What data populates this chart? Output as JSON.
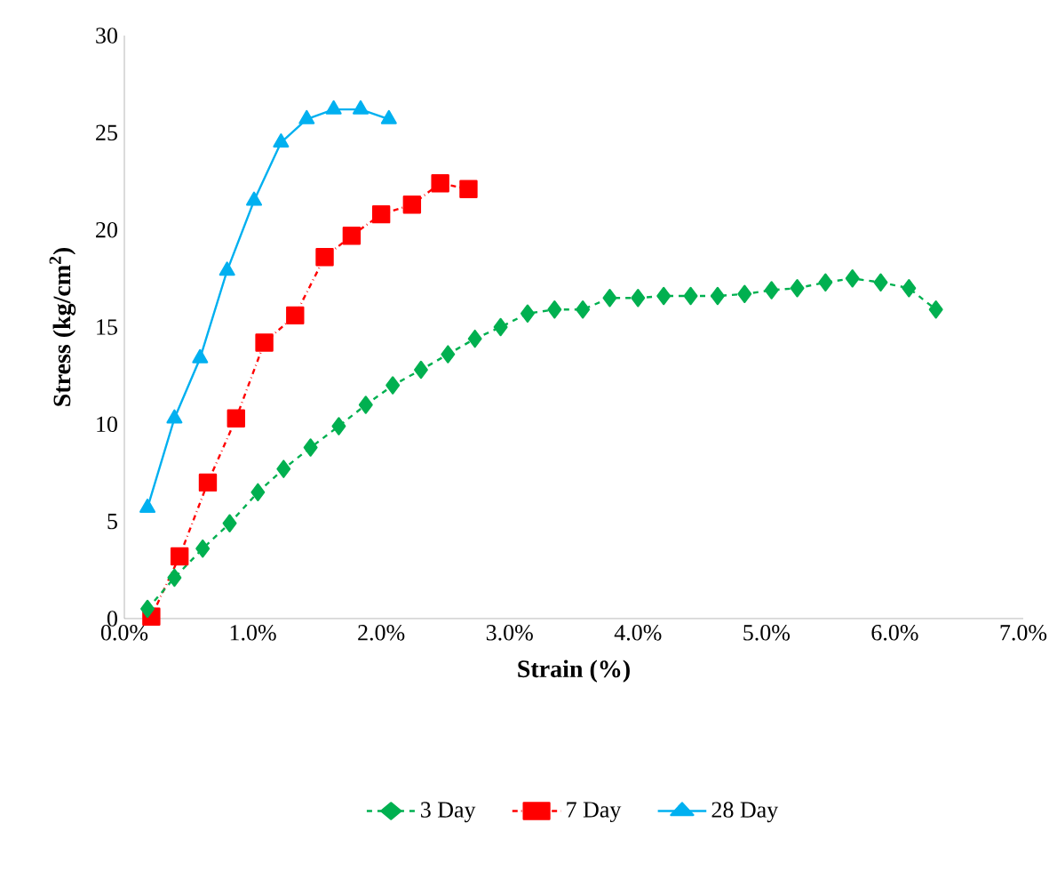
{
  "chart_data": {
    "type": "line",
    "xlabel": "Strain (%)",
    "ylabel": "Stress (kg/cm$^{2}$)",
    "xlim": [
      0,
      7
    ],
    "ylim": [
      0,
      30
    ],
    "xticks": [
      {
        "value": 0,
        "label": "0.0%"
      },
      {
        "value": 1,
        "label": "1.0%"
      },
      {
        "value": 2,
        "label": "2.0%"
      },
      {
        "value": 3,
        "label": "3.0%"
      },
      {
        "value": 4,
        "label": "4.0%"
      },
      {
        "value": 5,
        "label": "5.0%"
      },
      {
        "value": 6,
        "label": "6.0%"
      },
      {
        "value": 7,
        "label": "7.0%"
      }
    ],
    "yticks": [
      0,
      5,
      10,
      15,
      20,
      25,
      30
    ],
    "grid": false,
    "legend": "bottom",
    "series": [
      {
        "name": "3 Day",
        "color": "#00b050",
        "marker": "diamond",
        "line_style": "dashed",
        "x": [
          0.18,
          0.39,
          0.61,
          0.82,
          1.04,
          1.24,
          1.45,
          1.67,
          1.88,
          2.09,
          2.31,
          2.52,
          2.73,
          2.93,
          3.14,
          3.35,
          3.57,
          3.78,
          4.0,
          4.2,
          4.41,
          4.62,
          4.83,
          5.04,
          5.24,
          5.46,
          5.67,
          5.89,
          6.11,
          6.32
        ],
        "values": [
          0.5,
          2.1,
          3.6,
          4.9,
          6.5,
          7.7,
          8.8,
          9.9,
          11.0,
          12.0,
          12.8,
          13.6,
          14.4,
          15.0,
          15.7,
          15.9,
          15.9,
          16.5,
          16.5,
          16.6,
          16.6,
          16.6,
          16.7,
          16.9,
          17.0,
          17.3,
          17.5,
          17.3,
          17.0,
          15.9
        ]
      },
      {
        "name": "7 Day",
        "color": "#ff0000",
        "marker": "square",
        "line_style": "dashdotted",
        "x": [
          0.21,
          0.43,
          0.65,
          0.87,
          1.09,
          1.33,
          1.56,
          1.77,
          2.0,
          2.24,
          2.46,
          2.68
        ],
        "values": [
          0.1,
          3.2,
          7.0,
          10.3,
          14.2,
          15.6,
          18.6,
          19.7,
          20.8,
          21.3,
          22.4,
          22.1
        ]
      },
      {
        "name": "28 Day",
        "color": "#00b0f0",
        "marker": "triangle",
        "line_style": "solid",
        "x": [
          0.18,
          0.39,
          0.59,
          0.8,
          1.01,
          1.22,
          1.42,
          1.63,
          1.84,
          2.06
        ],
        "values": [
          5.7,
          10.3,
          13.4,
          17.9,
          21.5,
          24.5,
          25.7,
          26.2,
          26.2,
          25.7
        ]
      }
    ]
  }
}
